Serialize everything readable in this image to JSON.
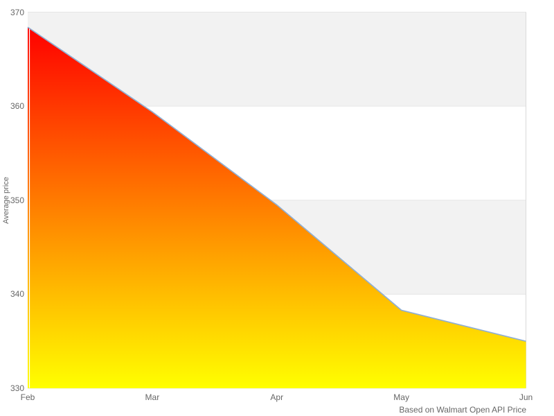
{
  "chart_data": {
    "type": "area",
    "categories": [
      "Feb",
      "Mar",
      "Apr",
      "May",
      "Jun"
    ],
    "values": [
      368.4,
      359.4,
      349.5,
      338.3,
      335.0
    ],
    "series_name": "Average price",
    "title": "",
    "xlabel": "",
    "ylabel": "Average price",
    "ylim": [
      330,
      370
    ],
    "yticks": [
      330,
      340,
      350,
      360,
      370
    ],
    "caption": "Based on Walmart Open API Price",
    "legend": "none",
    "grid": "horizontal gridlines with alternating gray bands between ticks",
    "colors": {
      "area_gradient_top": "#ff0000",
      "area_gradient_bottom": "#ffff00",
      "line": "#90afd3",
      "band": "#f2f2f2",
      "gridline": "#e6e6e6",
      "plot_border": "#d9d9d9",
      "axis_text": "#666666",
      "background": "#ffffff"
    }
  }
}
